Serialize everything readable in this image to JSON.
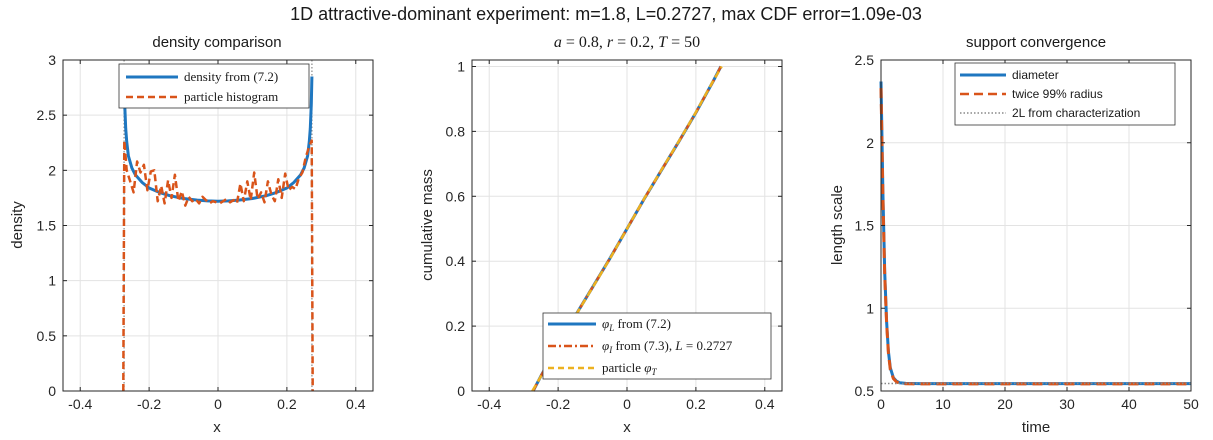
{
  "figure_title": "1D attractive-dominant experiment: m=1.8, L=0.2727, max CDF error=1.09e-03",
  "colors": {
    "blue": "#1f77c0",
    "orange": "#d9541a",
    "yellow": "#edb120",
    "grid": "#e3e3e3",
    "dotted": "#888888"
  },
  "chart_data": [
    {
      "type": "line",
      "title": "density comparison",
      "xlabel": "x",
      "ylabel": "density",
      "xlim": [
        -0.45,
        0.45
      ],
      "ylim": [
        0,
        3
      ],
      "xticks": [
        -0.4,
        -0.2,
        0,
        0.2,
        0.4
      ],
      "xtick_labels": [
        "-0.4",
        "-0.2",
        "0",
        "0.2",
        "0.4"
      ],
      "yticks": [
        0,
        0.5,
        1,
        1.5,
        2,
        2.5,
        3
      ],
      "ytick_labels": [
        "0",
        "0.5",
        "1",
        "1.5",
        "2",
        "2.5",
        "3"
      ],
      "grid": true,
      "legend_position": "top",
      "reference_lines_x": [
        -0.2727,
        0.2727
      ],
      "series": [
        {
          "name": "density from (7.2)",
          "style": "solid",
          "color": "#1f77c0",
          "x": [
            -0.2727,
            -0.271,
            -0.268,
            -0.265,
            -0.26,
            -0.25,
            -0.24,
            -0.22,
            -0.2,
            -0.17,
            -0.14,
            -0.1,
            -0.06,
            -0.03,
            0,
            0.03,
            0.06,
            0.1,
            0.14,
            0.17,
            0.2,
            0.22,
            0.24,
            0.25,
            0.26,
            0.265,
            0.268,
            0.271,
            0.2727
          ],
          "y": [
            2.85,
            2.6,
            2.38,
            2.26,
            2.13,
            2.02,
            1.96,
            1.89,
            1.84,
            1.8,
            1.77,
            1.745,
            1.73,
            1.723,
            1.72,
            1.723,
            1.73,
            1.745,
            1.77,
            1.8,
            1.84,
            1.89,
            1.96,
            2.02,
            2.13,
            2.26,
            2.38,
            2.6,
            2.85
          ]
        },
        {
          "name": "particle histogram",
          "style": "dashed",
          "color": "#d9541a",
          "x": [
            -0.275,
            -0.272,
            -0.265,
            -0.255,
            -0.245,
            -0.235,
            -0.225,
            -0.215,
            -0.205,
            -0.195,
            -0.185,
            -0.175,
            -0.165,
            -0.155,
            -0.145,
            -0.135,
            -0.125,
            -0.115,
            -0.105,
            -0.095,
            -0.085,
            -0.075,
            -0.065,
            -0.055,
            -0.045,
            -0.035,
            -0.025,
            -0.015,
            -0.005,
            0.005,
            0.015,
            0.025,
            0.035,
            0.045,
            0.055,
            0.065,
            0.075,
            0.085,
            0.095,
            0.105,
            0.115,
            0.125,
            0.135,
            0.145,
            0.155,
            0.165,
            0.175,
            0.185,
            0.195,
            0.205,
            0.215,
            0.225,
            0.235,
            0.245,
            0.255,
            0.265,
            0.272,
            0.275
          ],
          "y": [
            0,
            2.27,
            2.0,
            1.9,
            1.8,
            2.08,
            1.98,
            2.05,
            1.82,
            1.99,
            2.0,
            1.72,
            1.86,
            1.7,
            1.91,
            1.75,
            1.96,
            1.72,
            1.81,
            1.68,
            1.76,
            1.72,
            1.74,
            1.7,
            1.76,
            1.73,
            1.7,
            1.72,
            1.71,
            1.7,
            1.72,
            1.74,
            1.71,
            1.73,
            1.7,
            1.88,
            1.72,
            1.9,
            1.73,
            1.98,
            1.74,
            1.8,
            1.71,
            1.9,
            1.78,
            1.72,
            1.92,
            1.75,
            1.97,
            1.82,
            1.85,
            1.83,
            1.93,
            1.98,
            2.12,
            2.22,
            2.27,
            0
          ]
        }
      ]
    },
    {
      "type": "line",
      "title": "a = 0.8, r = 0.2, T = 50",
      "xlabel": "x",
      "ylabel": "cumulative mass",
      "xlim": [
        -0.45,
        0.45
      ],
      "ylim": [
        0,
        1.02
      ],
      "xticks": [
        -0.4,
        -0.2,
        0,
        0.2,
        0.4
      ],
      "xtick_labels": [
        "-0.4",
        "-0.2",
        "0",
        "0.2",
        "0.4"
      ],
      "yticks": [
        0,
        0.2,
        0.4,
        0.6,
        0.8,
        1
      ],
      "ytick_labels": [
        "0",
        "0.2",
        "0.4",
        "0.6",
        "0.8",
        "1"
      ],
      "grid": true,
      "legend_position": "bottom-right",
      "series": [
        {
          "name": "φ_L from (7.2)",
          "style": "solid",
          "color": "#1f77c0",
          "x": [
            -0.2727,
            -0.25,
            -0.2,
            -0.15,
            -0.1,
            -0.05,
            0,
            0.05,
            0.1,
            0.15,
            0.2,
            0.25,
            0.2727
          ],
          "y": [
            0,
            0.046,
            0.142,
            0.232,
            0.32,
            0.408,
            0.5,
            0.592,
            0.68,
            0.768,
            0.858,
            0.954,
            1.0
          ]
        },
        {
          "name": "φ_I from (7.3), L = 0.2727",
          "style": "dashdot",
          "color": "#d9541a",
          "x": [
            -0.2727,
            -0.25,
            -0.2,
            -0.15,
            -0.1,
            -0.05,
            0,
            0.05,
            0.1,
            0.15,
            0.2,
            0.25,
            0.2727
          ],
          "y": [
            0,
            0.046,
            0.142,
            0.232,
            0.32,
            0.408,
            0.5,
            0.592,
            0.68,
            0.768,
            0.858,
            0.954,
            1.0
          ]
        },
        {
          "name": "particle φ_T",
          "style": "dashed",
          "color": "#edb120",
          "x": [
            -0.275,
            -0.25,
            -0.2,
            -0.15,
            -0.1,
            -0.05,
            0,
            0.05,
            0.1,
            0.15,
            0.2,
            0.25,
            0.275
          ],
          "y": [
            0,
            0.045,
            0.141,
            0.231,
            0.319,
            0.407,
            0.5,
            0.593,
            0.681,
            0.769,
            0.859,
            0.955,
            1.0
          ]
        }
      ]
    },
    {
      "type": "line",
      "title": "support convergence",
      "xlabel": "time",
      "ylabel": "length scale",
      "xlim": [
        0,
        50
      ],
      "ylim": [
        0.5,
        2.5
      ],
      "xticks": [
        0,
        10,
        20,
        30,
        40,
        50
      ],
      "xtick_labels": [
        "0",
        "10",
        "20",
        "30",
        "40",
        "50"
      ],
      "yticks": [
        0.5,
        1,
        1.5,
        2,
        2.5
      ],
      "ytick_labels": [
        "0.5",
        "1",
        "1.5",
        "2",
        "2.5"
      ],
      "grid": true,
      "legend_position": "top-right",
      "series": [
        {
          "name": "diameter",
          "style": "solid",
          "color": "#1f77c0",
          "x": [
            0,
            0.3,
            0.6,
            0.9,
            1.2,
            1.5,
            2,
            2.5,
            3,
            4,
            6,
            10,
            20,
            30,
            40,
            50
          ],
          "y": [
            2.37,
            1.7,
            1.22,
            0.92,
            0.74,
            0.64,
            0.58,
            0.56,
            0.55,
            0.546,
            0.545,
            0.545,
            0.545,
            0.545,
            0.545,
            0.545
          ]
        },
        {
          "name": "twice 99% radius",
          "style": "dashed",
          "color": "#d9541a",
          "x": [
            0,
            0.3,
            0.6,
            0.9,
            1.2,
            1.5,
            2,
            2.5,
            3,
            4,
            6,
            10,
            20,
            30,
            40,
            50
          ],
          "y": [
            2.33,
            1.67,
            1.2,
            0.91,
            0.73,
            0.63,
            0.575,
            0.555,
            0.548,
            0.544,
            0.543,
            0.543,
            0.543,
            0.543,
            0.543,
            0.543
          ]
        },
        {
          "name": "2L from characterization",
          "style": "dotted",
          "color": "#888888",
          "x": [
            0,
            50
          ],
          "y": [
            0.5454,
            0.5454
          ]
        }
      ]
    }
  ],
  "panel_text": {
    "p1_legend": [
      "density from (7.2)",
      "particle histogram"
    ],
    "p3_legend": [
      "diameter",
      "twice 99% radius",
      "2L from characterization"
    ]
  }
}
